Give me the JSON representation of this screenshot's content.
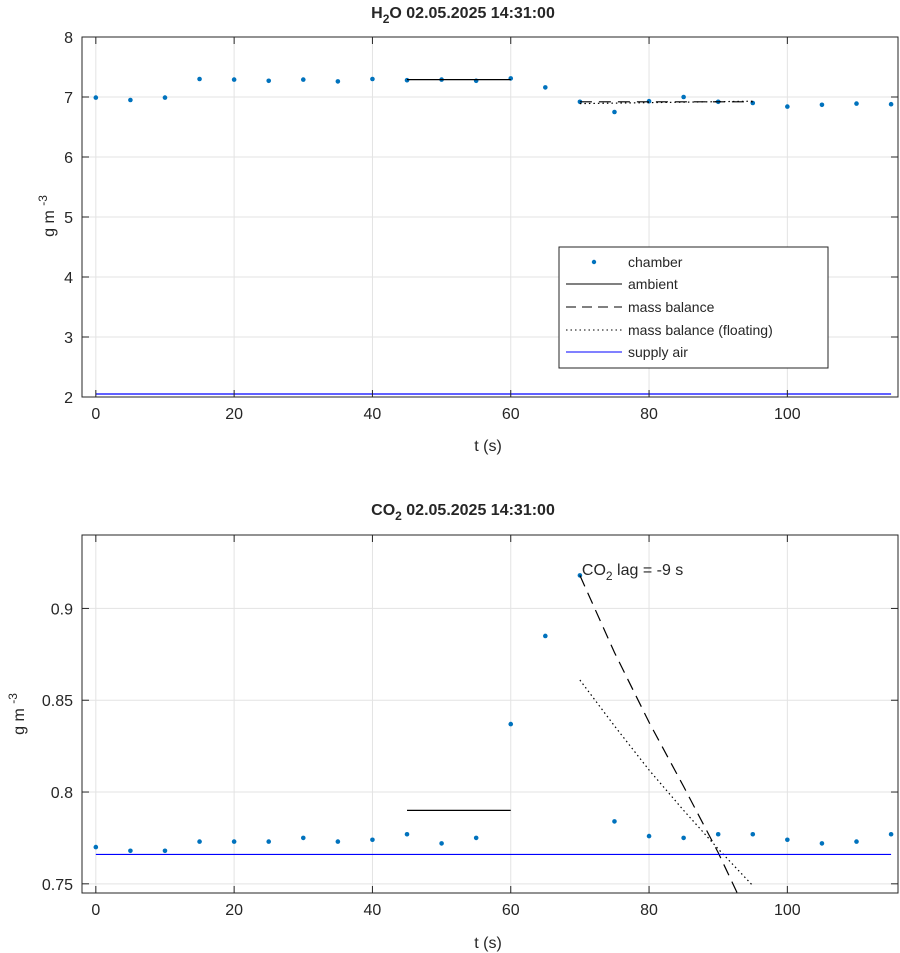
{
  "chart_data": [
    {
      "type": "scatter",
      "title": {
        "main": "H",
        "sub": "2",
        "rest": "O  02.05.2025 14:31:00"
      },
      "xlabel": "t (s)",
      "ylabel": {
        "base": "g m ",
        "sup": "-3"
      },
      "xlim": [
        -2,
        116
      ],
      "ylim": [
        2,
        8
      ],
      "xticks": [
        0,
        20,
        40,
        60,
        80,
        100
      ],
      "yticks": [
        2,
        3,
        4,
        5,
        6,
        7,
        8
      ],
      "grid": true,
      "legend_position": "lower-right",
      "series": [
        {
          "name": "chamber",
          "style": "dots",
          "color": "#0072bd",
          "x": [
            0,
            5,
            10,
            15,
            20,
            25,
            30,
            35,
            40,
            45,
            50,
            55,
            60,
            65,
            70,
            75,
            80,
            85,
            90,
            95,
            100,
            105,
            110,
            115
          ],
          "y": [
            6.99,
            6.95,
            6.99,
            7.3,
            7.29,
            7.27,
            7.29,
            7.26,
            7.3,
            7.28,
            7.29,
            7.27,
            7.31,
            7.16,
            6.92,
            6.75,
            6.93,
            7.0,
            6.92,
            6.9,
            6.84,
            6.87,
            6.89,
            6.88
          ]
        },
        {
          "name": "ambient",
          "style": "solid",
          "color": "#000000",
          "x": [
            45,
            60
          ],
          "y": [
            7.29,
            7.29
          ]
        },
        {
          "name": "mass balance",
          "style": "dashed",
          "color": "#000000",
          "x": [
            70,
            95
          ],
          "y": [
            6.92,
            6.92
          ]
        },
        {
          "name": "mass balance (floating)",
          "style": "dotted",
          "color": "#000000",
          "x": [
            70,
            95
          ],
          "y": [
            6.89,
            6.93
          ]
        },
        {
          "name": "supply air",
          "style": "solid",
          "color": "#0000ff",
          "x": [
            0,
            115
          ],
          "y": [
            2.05,
            2.05
          ]
        }
      ]
    },
    {
      "type": "scatter",
      "title": {
        "main": "CO",
        "sub": "2",
        "rest": "  02.05.2025 14:31:00"
      },
      "xlabel": "t (s)",
      "ylabel": {
        "base": "g m ",
        "sup": "-3"
      },
      "xlim": [
        -2,
        116
      ],
      "ylim": [
        0.745,
        0.94
      ],
      "xticks": [
        0,
        20,
        40,
        60,
        80,
        100
      ],
      "yticks": [
        0.75,
        0.8,
        0.85,
        0.9
      ],
      "grid": true,
      "annotation": {
        "main": "CO",
        "sub": "2",
        "rest": " lag = -9 s",
        "x": 70,
        "y": 0.923
      },
      "series": [
        {
          "name": "chamber",
          "style": "dots",
          "color": "#0072bd",
          "x": [
            0,
            5,
            10,
            15,
            20,
            25,
            30,
            35,
            40,
            45,
            50,
            55,
            60,
            65,
            70,
            75,
            80,
            85,
            90,
            95,
            100,
            105,
            110,
            115
          ],
          "y": [
            0.77,
            0.768,
            0.768,
            0.773,
            0.773,
            0.773,
            0.775,
            0.773,
            0.774,
            0.777,
            0.772,
            0.775,
            0.837,
            0.885,
            0.918,
            0.784,
            0.776,
            0.775,
            0.777,
            0.777,
            0.774,
            0.772,
            0.773,
            0.777
          ]
        },
        {
          "name": "ambient",
          "style": "solid",
          "color": "#000000",
          "x": [
            45,
            60
          ],
          "y": [
            0.79,
            0.79
          ]
        },
        {
          "name": "mass balance",
          "style": "dashed",
          "color": "#000000",
          "x": [
            70,
            75,
            80,
            85,
            90,
            93
          ],
          "y": [
            0.918,
            0.876,
            0.838,
            0.803,
            0.767,
            0.743
          ]
        },
        {
          "name": "mass balance (floating)",
          "style": "dotted",
          "color": "#000000",
          "x": [
            70,
            75,
            80,
            85,
            90,
            95
          ],
          "y": [
            0.861,
            0.836,
            0.812,
            0.79,
            0.769,
            0.749
          ]
        },
        {
          "name": "supply air",
          "style": "solid",
          "color": "#0000ff",
          "x": [
            0,
            115
          ],
          "y": [
            0.766,
            0.766
          ]
        }
      ]
    }
  ]
}
